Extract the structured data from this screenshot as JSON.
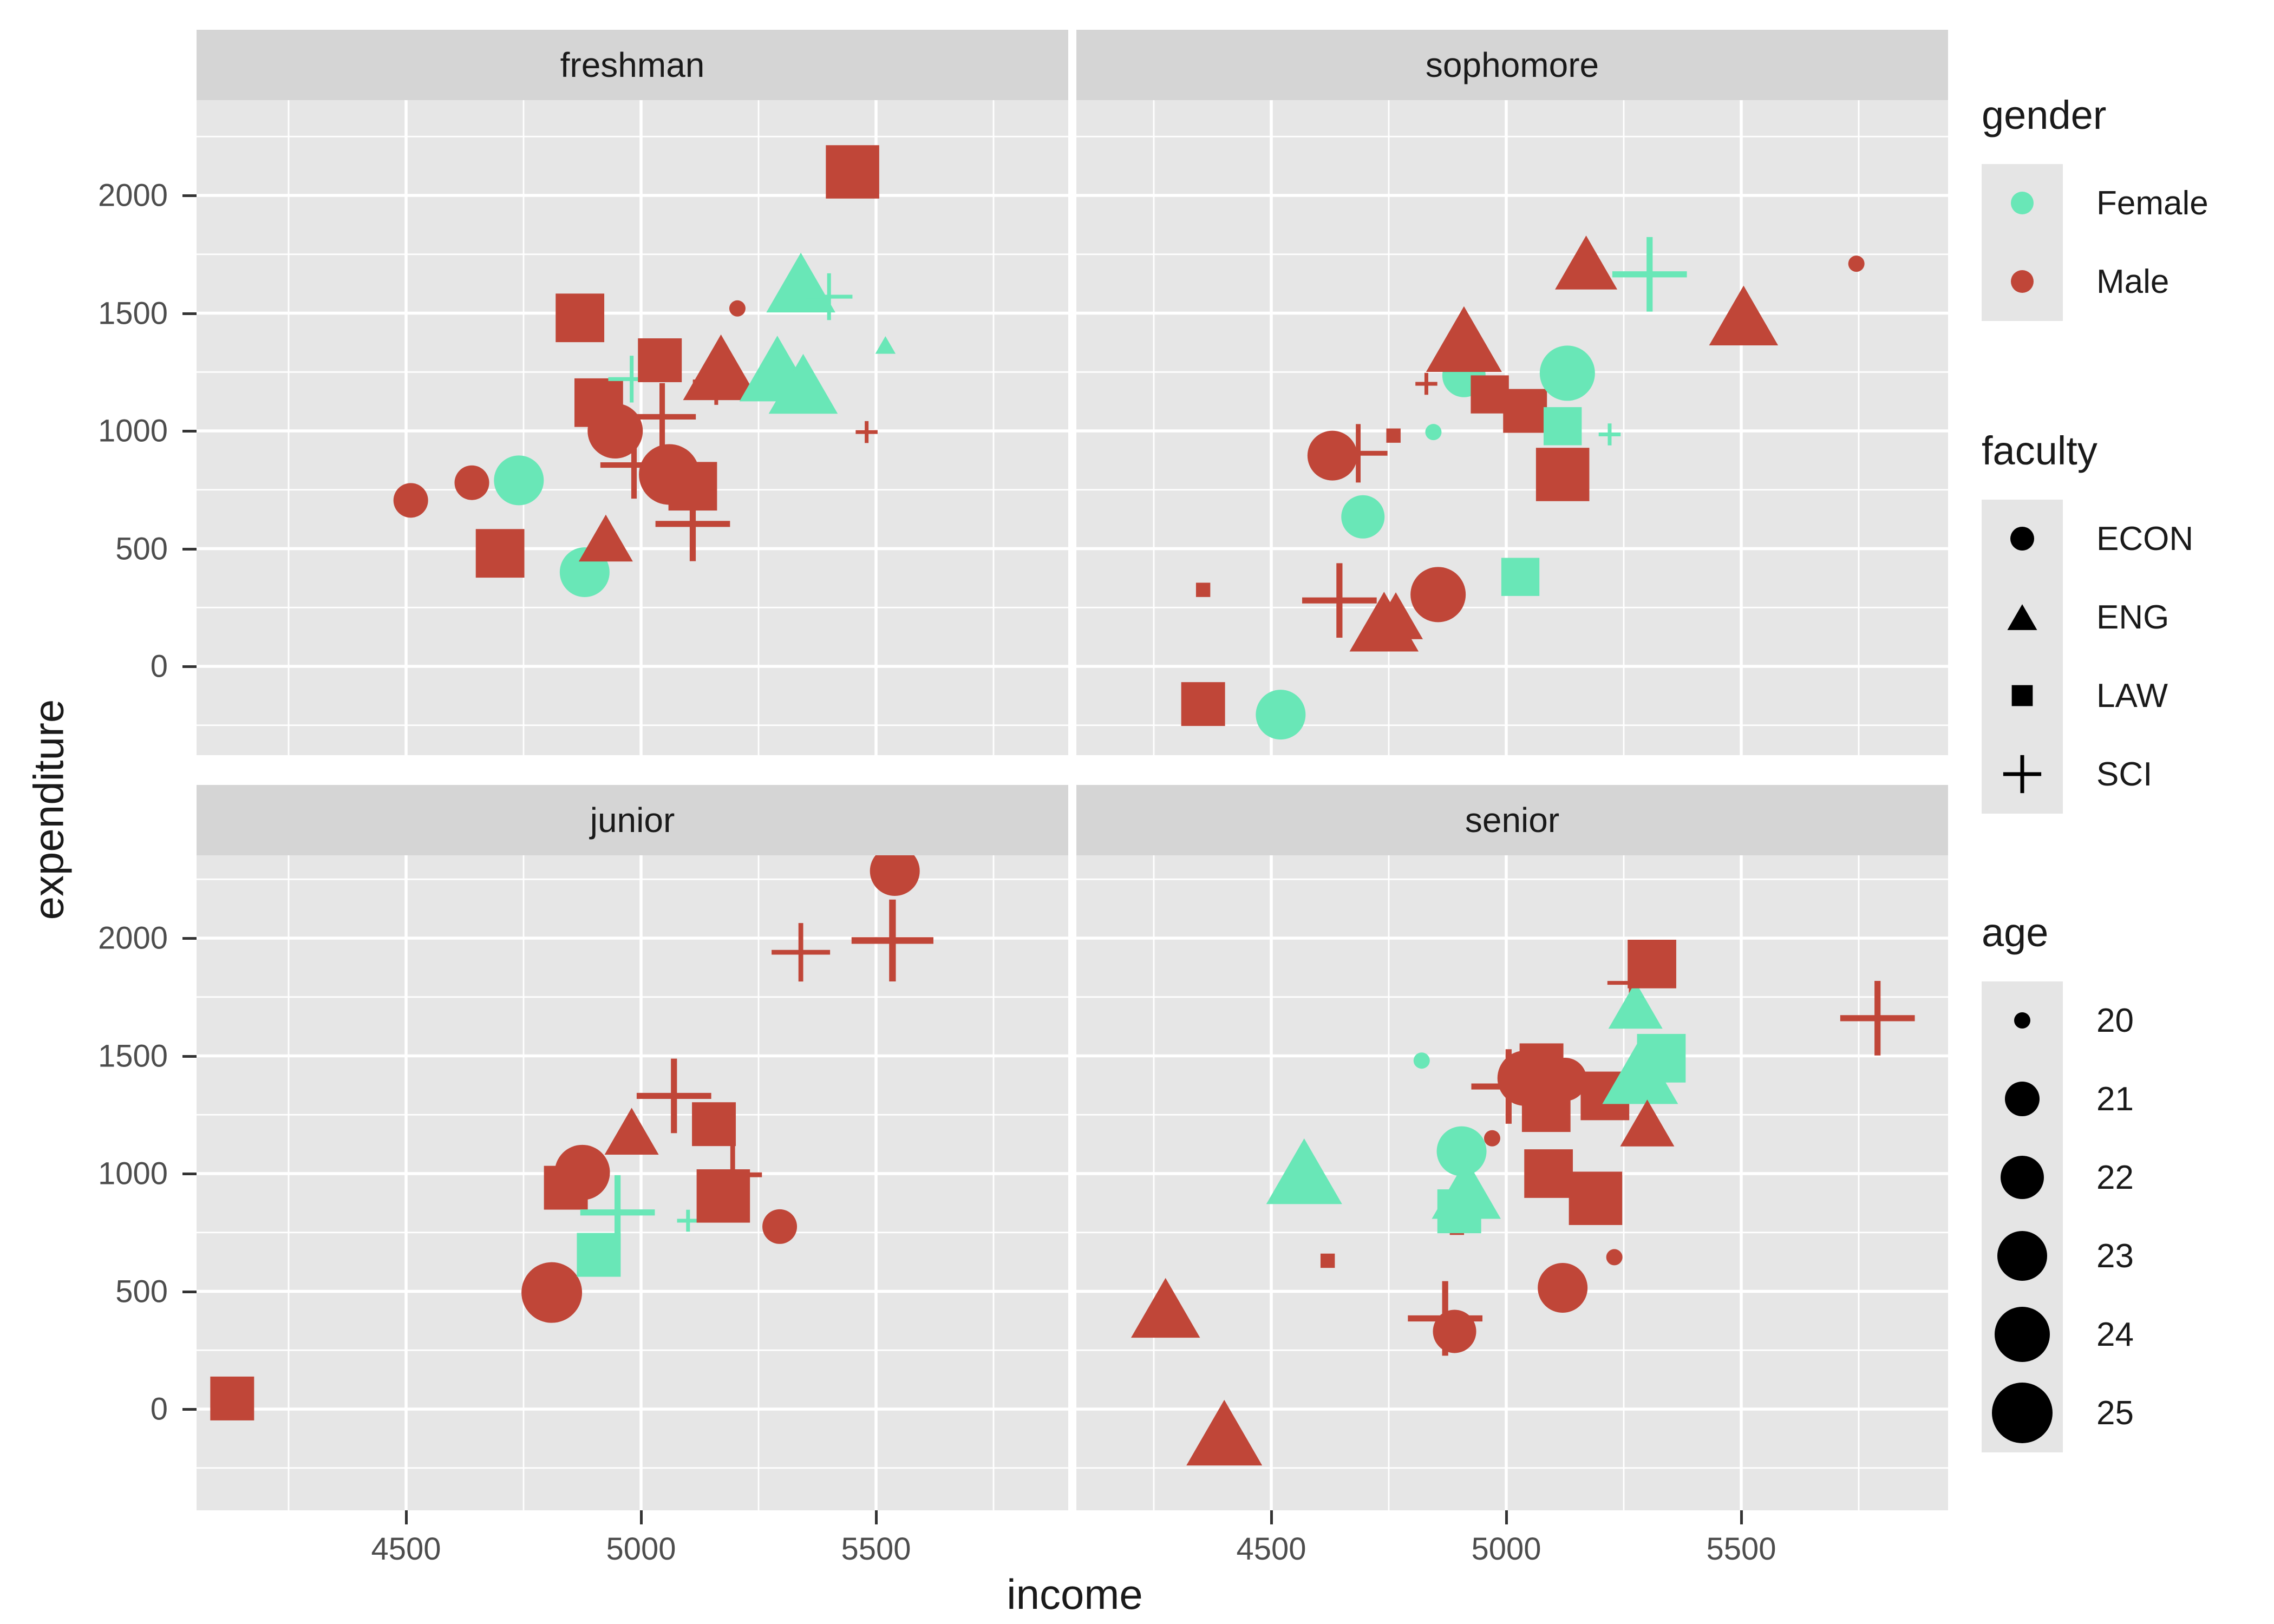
{
  "labels": {
    "x_title": "income",
    "y_title": "expenditure",
    "legend_gender_title": "gender",
    "legend_faculty_title": "faculty",
    "legend_age_title": "age"
  },
  "colors": {
    "background": "#FFFFFF",
    "panel_bg": "#E6E6E6",
    "strip_bg": "#D5D5D5",
    "grid": "#FFFFFF",
    "axis_text": "#4D4D4D",
    "text": "#1A1A1A",
    "legend_key_bg": "#E5E5E5",
    "legend_icon": "#000000",
    "gender_colors": {
      "Female": "#69E7B7",
      "Male": "#C04638"
    }
  },
  "chart_data": {
    "type": "scatter",
    "title": "",
    "xlabel": "income",
    "ylabel": "expenditure",
    "grid": "on",
    "legend_position": "right",
    "facet_titles": [
      "freshman",
      "sophomore",
      "junior",
      "senior"
    ],
    "x_ticks": [
      4500,
      5000,
      5500
    ],
    "x_minor": [
      4250,
      4750,
      5250,
      5750
    ],
    "y_ticks": [
      2000,
      1500,
      1000,
      500,
      0
    ],
    "y_minor": [
      2250,
      1750,
      1250,
      750,
      250,
      -250
    ],
    "xlim": [
      4055,
      5935
    ],
    "ylim": [
      -390,
      2415
    ],
    "shape_map": {
      "ECON": "circle",
      "ENG": "triangle",
      "LAW": "square",
      "SCI": "plus"
    },
    "age_size_map": {
      "20": 30,
      "21": 64,
      "22": 80,
      "23": 92,
      "24": 102,
      "25": 112
    },
    "legend": {
      "gender": [
        {
          "label": "Female"
        },
        {
          "label": "Male"
        }
      ],
      "faculty": [
        {
          "label": "ECON"
        },
        {
          "label": "ENG"
        },
        {
          "label": "LAW"
        },
        {
          "label": "SCI"
        }
      ],
      "age": [
        {
          "label": "20"
        },
        {
          "label": "21"
        },
        {
          "label": "22"
        },
        {
          "label": "23"
        },
        {
          "label": "24"
        },
        {
          "label": "25"
        }
      ]
    },
    "facets": [
      {
        "name": "freshman",
        "points": [
          {
            "income": 4510,
            "expenditure": 705,
            "gender": "Male",
            "faculty": "ECON",
            "age": 21
          },
          {
            "income": 4640,
            "expenditure": 780,
            "gender": "Male",
            "faculty": "ECON",
            "age": 21
          },
          {
            "income": 4700,
            "expenditure": 480,
            "gender": "Male",
            "faculty": "LAW",
            "age": 24
          },
          {
            "income": 4740,
            "expenditure": 790,
            "gender": "Female",
            "faculty": "ECON",
            "age": 23
          },
          {
            "income": 4880,
            "expenditure": 400,
            "gender": "Female",
            "faculty": "ECON",
            "age": 23
          },
          {
            "income": 4925,
            "expenditure": 545,
            "gender": "Male",
            "faculty": "ENG",
            "age": 22
          },
          {
            "income": 4870,
            "expenditure": 1480,
            "gender": "Male",
            "faculty": "LAW",
            "age": 24
          },
          {
            "income": 4910,
            "expenditure": 1120,
            "gender": "Male",
            "faculty": "LAW",
            "age": 24
          },
          {
            "income": 4945,
            "expenditure": 1000,
            "gender": "Male",
            "faculty": "ECON",
            "age": 24
          },
          {
            "income": 4980,
            "expenditure": 1220,
            "gender": "Female",
            "faculty": "SCI",
            "age": 21
          },
          {
            "income": 4985,
            "expenditure": 855,
            "gender": "Male",
            "faculty": "SCI",
            "age": 23
          },
          {
            "income": 5040,
            "expenditure": 1300,
            "gender": "Male",
            "faculty": "LAW",
            "age": 23
          },
          {
            "income": 5045,
            "expenditure": 1060,
            "gender": "Male",
            "faculty": "SCI",
            "age": 23
          },
          {
            "income": 5060,
            "expenditure": 815,
            "gender": "Male",
            "faculty": "ECON",
            "age": 25
          },
          {
            "income": 5110,
            "expenditure": 765,
            "gender": "Male",
            "faculty": "LAW",
            "age": 24
          },
          {
            "income": 5110,
            "expenditure": 605,
            "gender": "Male",
            "faculty": "SCI",
            "age": 24
          },
          {
            "income": 5160,
            "expenditure": 1210,
            "gender": "Male",
            "faculty": "SCI",
            "age": 21
          },
          {
            "income": 5170,
            "expenditure": 1270,
            "gender": "Male",
            "faculty": "ENG",
            "age": 25
          },
          {
            "income": 5205,
            "expenditure": 1520,
            "gender": "Male",
            "faculty": "ECON",
            "age": 20
          },
          {
            "income": 5290,
            "expenditure": 1265,
            "gender": "Female",
            "faculty": "ENG",
            "age": 25
          },
          {
            "income": 5345,
            "expenditure": 1200,
            "gender": "Female",
            "faculty": "ENG",
            "age": 24
          },
          {
            "income": 5340,
            "expenditure": 1630,
            "gender": "Female",
            "faculty": "ENG",
            "age": 24
          },
          {
            "income": 5400,
            "expenditure": 1570,
            "gender": "Female",
            "faculty": "SCI",
            "age": 21
          },
          {
            "income": 5480,
            "expenditure": 995,
            "gender": "Male",
            "faculty": "SCI",
            "age": 20
          },
          {
            "income": 5520,
            "expenditure": 1365,
            "gender": "Female",
            "faculty": "ENG",
            "age": 20
          },
          {
            "income": 5450,
            "expenditure": 2100,
            "gender": "Male",
            "faculty": "LAW",
            "age": 25
          }
        ]
      },
      {
        "name": "sophomore",
        "points": [
          {
            "income": 4355,
            "expenditure": -160,
            "gender": "Male",
            "faculty": "LAW",
            "age": 23
          },
          {
            "income": 4355,
            "expenditure": 325,
            "gender": "Male",
            "faculty": "LAW",
            "age": 20
          },
          {
            "income": 4520,
            "expenditure": -205,
            "gender": "Female",
            "faculty": "ECON",
            "age": 23
          },
          {
            "income": 4645,
            "expenditure": 280,
            "gender": "Male",
            "faculty": "SCI",
            "age": 24
          },
          {
            "income": 4630,
            "expenditure": 895,
            "gender": "Male",
            "faculty": "ECON",
            "age": 23
          },
          {
            "income": 4685,
            "expenditure": 905,
            "gender": "Male",
            "faculty": "SCI",
            "age": 22
          },
          {
            "income": 4695,
            "expenditure": 635,
            "gender": "Female",
            "faculty": "ECON",
            "age": 22
          },
          {
            "income": 4740,
            "expenditure": 190,
            "gender": "Male",
            "faculty": "ENG",
            "age": 24
          },
          {
            "income": 4765,
            "expenditure": 215,
            "gender": "Male",
            "faculty": "ENG",
            "age": 22
          },
          {
            "income": 4760,
            "expenditure": 980,
            "gender": "Male",
            "faculty": "LAW",
            "age": 20
          },
          {
            "income": 4845,
            "expenditure": 995,
            "gender": "Female",
            "faculty": "ECON",
            "age": 20
          },
          {
            "income": 4830,
            "expenditure": 1200,
            "gender": "Male",
            "faculty": "SCI",
            "age": 20
          },
          {
            "income": 4855,
            "expenditure": 305,
            "gender": "Male",
            "faculty": "ECON",
            "age": 24
          },
          {
            "income": 4910,
            "expenditure": 1235,
            "gender": "Female",
            "faculty": "ECON",
            "age": 22
          },
          {
            "income": 4910,
            "expenditure": 1390,
            "gender": "Male",
            "faculty": "ENG",
            "age": 25
          },
          {
            "income": 4965,
            "expenditure": 1155,
            "gender": "Male",
            "faculty": "LAW",
            "age": 22
          },
          {
            "income": 5030,
            "expenditure": 380,
            "gender": "Female",
            "faculty": "LAW",
            "age": 22
          },
          {
            "income": 5040,
            "expenditure": 1085,
            "gender": "Male",
            "faculty": "LAW",
            "age": 23
          },
          {
            "income": 5120,
            "expenditure": 1020,
            "gender": "Female",
            "faculty": "LAW",
            "age": 22
          },
          {
            "income": 5120,
            "expenditure": 815,
            "gender": "Male",
            "faculty": "LAW",
            "age": 25
          },
          {
            "income": 5130,
            "expenditure": 1245,
            "gender": "Female",
            "faculty": "ECON",
            "age": 24
          },
          {
            "income": 5170,
            "expenditure": 1715,
            "gender": "Male",
            "faculty": "ENG",
            "age": 23
          },
          {
            "income": 5220,
            "expenditure": 985,
            "gender": "Female",
            "faculty": "SCI",
            "age": 20
          },
          {
            "income": 5305,
            "expenditure": 1665,
            "gender": "Female",
            "faculty": "SCI",
            "age": 24
          },
          {
            "income": 5505,
            "expenditure": 1490,
            "gender": "Male",
            "faculty": "ENG",
            "age": 24
          },
          {
            "income": 5745,
            "expenditure": 1710,
            "gender": "Male",
            "faculty": "ECON",
            "age": 20
          }
        ]
      },
      {
        "name": "junior",
        "points": [
          {
            "income": 4130,
            "expenditure": 45,
            "gender": "Male",
            "faculty": "LAW",
            "age": 23
          },
          {
            "income": 4810,
            "expenditure": 495,
            "gender": "Male",
            "faculty": "ECON",
            "age": 25
          },
          {
            "income": 4840,
            "expenditure": 940,
            "gender": "Male",
            "faculty": "LAW",
            "age": 23
          },
          {
            "income": 4875,
            "expenditure": 1005,
            "gender": "Male",
            "faculty": "ECON",
            "age": 24
          },
          {
            "income": 4910,
            "expenditure": 655,
            "gender": "Female",
            "faculty": "LAW",
            "age": 23
          },
          {
            "income": 4950,
            "expenditure": 835,
            "gender": "Female",
            "faculty": "SCI",
            "age": 24
          },
          {
            "income": 4980,
            "expenditure": 1180,
            "gender": "Male",
            "faculty": "ENG",
            "age": 22
          },
          {
            "income": 5070,
            "expenditure": 1330,
            "gender": "Male",
            "faculty": "SCI",
            "age": 24
          },
          {
            "income": 5100,
            "expenditure": 800,
            "gender": "Female",
            "faculty": "SCI",
            "age": 20
          },
          {
            "income": 5155,
            "expenditure": 1210,
            "gender": "Male",
            "faculty": "LAW",
            "age": 23
          },
          {
            "income": 5175,
            "expenditure": 905,
            "gender": "Male",
            "faculty": "LAW",
            "age": 25
          },
          {
            "income": 5195,
            "expenditure": 995,
            "gender": "Male",
            "faculty": "SCI",
            "age": 22
          },
          {
            "income": 5295,
            "expenditure": 775,
            "gender": "Male",
            "faculty": "ECON",
            "age": 21
          },
          {
            "income": 5340,
            "expenditure": 1940,
            "gender": "Male",
            "faculty": "SCI",
            "age": 22
          },
          {
            "income": 5535,
            "expenditure": 1990,
            "gender": "Male",
            "faculty": "SCI",
            "age": 25
          },
          {
            "income": 5540,
            "expenditure": 2285,
            "gender": "Male",
            "faculty": "ECON",
            "age": 23
          }
        ]
      },
      {
        "name": "senior",
        "points": [
          {
            "income": 4275,
            "expenditure": 430,
            "gender": "Male",
            "faculty": "ENG",
            "age": 24
          },
          {
            "income": 4400,
            "expenditure": -100,
            "gender": "Male",
            "faculty": "ENG",
            "age": 25
          },
          {
            "income": 4570,
            "expenditure": 1010,
            "gender": "Female",
            "faculty": "ENG",
            "age": 25
          },
          {
            "income": 4620,
            "expenditure": 630,
            "gender": "Male",
            "faculty": "LAW",
            "age": 20
          },
          {
            "income": 4820,
            "expenditure": 1480,
            "gender": "Female",
            "faculty": "ECON",
            "age": 20
          },
          {
            "income": 4870,
            "expenditure": 385,
            "gender": "Male",
            "faculty": "SCI",
            "age": 24
          },
          {
            "income": 4890,
            "expenditure": 330,
            "gender": "Male",
            "faculty": "ECON",
            "age": 22
          },
          {
            "income": 4895,
            "expenditure": 770,
            "gender": "Male",
            "faculty": "LAW",
            "age": 20
          },
          {
            "income": 4900,
            "expenditure": 840,
            "gender": "Female",
            "faculty": "LAW",
            "age": 23
          },
          {
            "income": 4905,
            "expenditure": 1095,
            "gender": "Female",
            "faculty": "ECON",
            "age": 23
          },
          {
            "income": 4915,
            "expenditure": 935,
            "gender": "Female",
            "faculty": "ENG",
            "age": 24
          },
          {
            "income": 4970,
            "expenditure": 1150,
            "gender": "Male",
            "faculty": "ECON",
            "age": 20
          },
          {
            "income": 5005,
            "expenditure": 1370,
            "gender": "Male",
            "faculty": "SCI",
            "age": 24
          },
          {
            "income": 5040,
            "expenditure": 1405,
            "gender": "Male",
            "faculty": "ECON",
            "age": 24
          },
          {
            "income": 5075,
            "expenditure": 1460,
            "gender": "Male",
            "faculty": "LAW",
            "age": 23
          },
          {
            "income": 5085,
            "expenditure": 1280,
            "gender": "Male",
            "faculty": "LAW",
            "age": 24
          },
          {
            "income": 5090,
            "expenditure": 1000,
            "gender": "Male",
            "faculty": "LAW",
            "age": 24
          },
          {
            "income": 5120,
            "expenditure": 515,
            "gender": "Male",
            "faculty": "ECON",
            "age": 23
          },
          {
            "income": 5125,
            "expenditure": 1400,
            "gender": "Male",
            "faculty": "ECON",
            "age": 22
          },
          {
            "income": 5190,
            "expenditure": 895,
            "gender": "Male",
            "faculty": "LAW",
            "age": 25
          },
          {
            "income": 5210,
            "expenditure": 1330,
            "gender": "Male",
            "faculty": "LAW",
            "age": 24
          },
          {
            "income": 5230,
            "expenditure": 645,
            "gender": "Male",
            "faculty": "ECON",
            "age": 20
          },
          {
            "income": 5265,
            "expenditure": 1810,
            "gender": "Male",
            "faculty": "SCI",
            "age": 21
          },
          {
            "income": 5275,
            "expenditure": 1715,
            "gender": "Female",
            "faculty": "ENG",
            "age": 22
          },
          {
            "income": 5285,
            "expenditure": 1435,
            "gender": "Female",
            "faculty": "ENG",
            "age": 25
          },
          {
            "income": 5300,
            "expenditure": 1215,
            "gender": "Male",
            "faculty": "ENG",
            "age": 22
          },
          {
            "income": 5310,
            "expenditure": 1890,
            "gender": "Male",
            "faculty": "LAW",
            "age": 24
          },
          {
            "income": 5330,
            "expenditure": 1490,
            "gender": "Female",
            "faculty": "LAW",
            "age": 24
          },
          {
            "income": 5790,
            "expenditure": 1660,
            "gender": "Male",
            "faculty": "SCI",
            "age": 24
          }
        ]
      }
    ]
  }
}
